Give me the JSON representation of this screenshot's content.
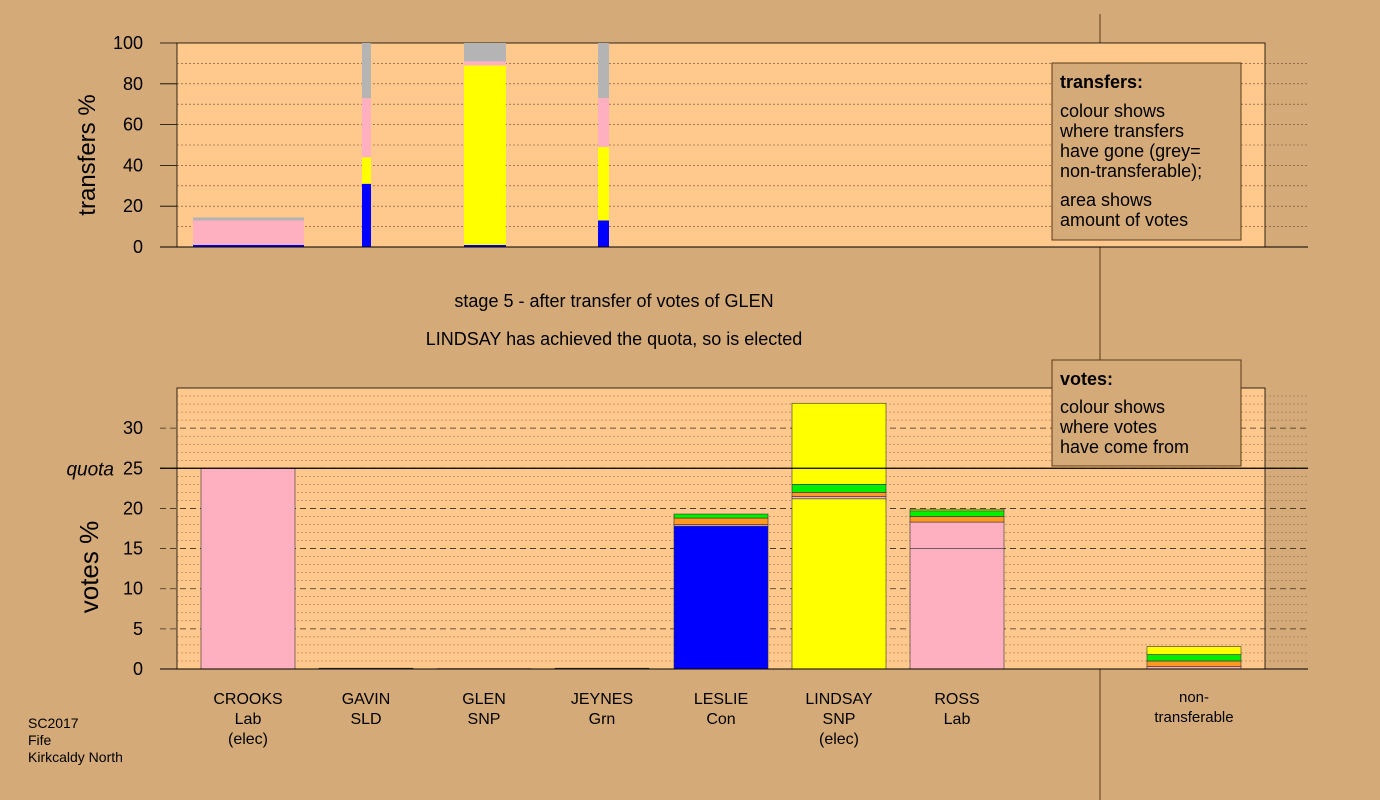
{
  "colors": {
    "background": "#d4aa78",
    "plot_bg": "#ffc88c",
    "Lab": "#ffb0c0",
    "SNP": "#ffff00",
    "Con": "#0000ff",
    "Grn": "#00ee00",
    "SLD": "#ff9922",
    "nontransferable": "#b4b4b4"
  },
  "title": {
    "stage": "stage 5 - after transfer of votes of GLEN",
    "status": "LINDSAY has achieved the quota, so is elected"
  },
  "legend_transfers": {
    "heading": "transfers:",
    "lines1": [
      "colour shows",
      "where transfers",
      "have gone (grey=",
      "non-transferable);"
    ],
    "lines2": [
      "area shows",
      "amount of votes"
    ]
  },
  "legend_votes": {
    "heading": "votes:",
    "lines": [
      "colour shows",
      "where votes",
      "have come from"
    ]
  },
  "footer": {
    "lines": [
      "SC2017",
      "Fife",
      "Kirkcaldy North"
    ]
  },
  "chart_data": [
    {
      "type": "bar",
      "panel": "transfers",
      "ylabel": "transfers %",
      "ylim": [
        0,
        100
      ],
      "yticks": [
        "0",
        "20",
        "40",
        "60",
        "80",
        "100"
      ],
      "columns": [
        {
          "name": "CROOKS",
          "segments": [
            {
              "party": "Con",
              "value": 1
            },
            {
              "party": "Lab",
              "value": 12
            },
            {
              "party": "nontransferable",
              "value": 1.5
            }
          ]
        },
        {
          "name": "GAVIN",
          "segments": [
            {
              "party": "Con",
              "value": 31
            },
            {
              "party": "SNP",
              "value": 13
            },
            {
              "party": "Lab",
              "value": 29
            },
            {
              "party": "nontransferable",
              "value": 27
            }
          ]
        },
        {
          "name": "GLEN",
          "segments": [
            {
              "party": "Con",
              "value": 1
            },
            {
              "party": "SNP",
              "value": 88
            },
            {
              "party": "Lab",
              "value": 2
            },
            {
              "party": "nontransferable",
              "value": 9
            }
          ]
        },
        {
          "name": "JEYNES",
          "segments": [
            {
              "party": "Con",
              "value": 13
            },
            {
              "party": "SNP",
              "value": 36
            },
            {
              "party": "Lab",
              "value": 24
            },
            {
              "party": "nontransferable",
              "value": 27
            }
          ]
        }
      ]
    },
    {
      "type": "bar",
      "panel": "votes",
      "ylabel": "votes %",
      "ylim": [
        0,
        35
      ],
      "yticks": [
        "0",
        "5",
        "10",
        "15",
        "20",
        "25",
        "30"
      ],
      "quota": 25,
      "quota_label": "quota",
      "candidates": [
        {
          "name": "CROOKS",
          "party": "Lab",
          "status": "(elec)",
          "segments": [
            {
              "party": "Lab",
              "value": 25
            }
          ]
        },
        {
          "name": "GAVIN",
          "party": "SLD",
          "status": "",
          "segments": [
            {
              "party": "SLD",
              "value": 0.1
            }
          ]
        },
        {
          "name": "GLEN",
          "party": "SNP",
          "status": "",
          "segments": [
            {
              "party": "SNP",
              "value": 0.05
            }
          ]
        },
        {
          "name": "JEYNES",
          "party": "Grn",
          "status": "",
          "segments": [
            {
              "party": "Grn",
              "value": 0.1
            }
          ]
        },
        {
          "name": "LESLIE",
          "party": "Con",
          "status": "",
          "segments": [
            {
              "party": "Con",
              "value": 17.8
            },
            {
              "party": "Lab",
              "value": 0.2
            },
            {
              "party": "SLD",
              "value": 0.8
            },
            {
              "party": "Grn",
              "value": 0.5
            }
          ]
        },
        {
          "name": "LINDSAY",
          "party": "SNP",
          "status": "(elec)",
          "segments": [
            {
              "party": "SNP",
              "value": 21.2
            },
            {
              "party": "Lab",
              "value": 0.3
            },
            {
              "party": "SLD",
              "value": 0.5
            },
            {
              "party": "Grn",
              "value": 1
            },
            {
              "party": "SNP",
              "value": 10.1
            }
          ]
        },
        {
          "name": "ROSS",
          "party": "Lab",
          "status": "",
          "segments": [
            {
              "party": "Lab",
              "value": 15
            },
            {
              "party": "Lab",
              "value": 3.3
            },
            {
              "party": "SLD",
              "value": 0.7
            },
            {
              "party": "Grn",
              "value": 0.7
            },
            {
              "party": "SNP",
              "value": 0.2
            }
          ]
        }
      ],
      "nontransferable": {
        "label_lines": [
          "non-",
          "transferable"
        ],
        "segments": [
          {
            "party": "Lab",
            "value": 0.3
          },
          {
            "party": "SLD",
            "value": 0.7
          },
          {
            "party": "Grn",
            "value": 0.8
          },
          {
            "party": "SNP",
            "value": 1
          }
        ]
      }
    }
  ]
}
